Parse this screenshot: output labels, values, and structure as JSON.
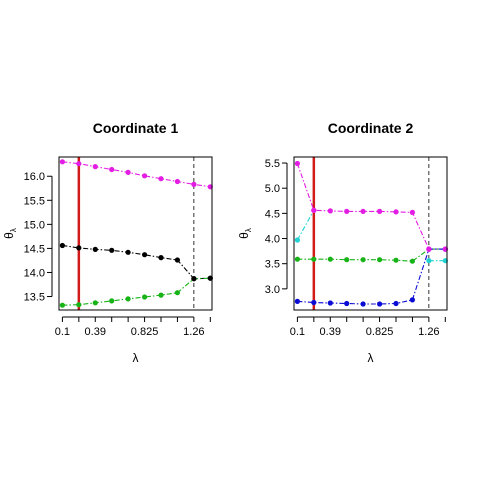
{
  "colors": {
    "magenta": "#e31de3",
    "black": "#000000",
    "green": "#17b317",
    "blue": "#0b0bd6",
    "cyan": "#20d3d3",
    "red": "#d11b1b",
    "axis": "#000000",
    "vline_dashed": "#000000"
  },
  "chart_data": [
    {
      "type": "line",
      "title": "Coordinate  1",
      "xlabel": "λ",
      "ylabel": "θλ",
      "ylabel_main": "θ",
      "ylabel_sub": "λ",
      "xlim": [
        0.07,
        1.42
      ],
      "ylim": [
        13.22,
        16.4
      ],
      "xticks": [
        0.1,
        0.39,
        0.825,
        1.26
      ],
      "xtick_labels": [
        "0.1",
        "0.39",
        "0.825",
        "1.26"
      ],
      "yticks": [
        13.5,
        14.0,
        14.5,
        15.0,
        15.5,
        16.0
      ],
      "ytick_labels": [
        "13.5",
        "14.0",
        "14.5",
        "15.0",
        "15.5",
        "16.0"
      ],
      "vline_solid": 0.245,
      "vline_dashed": 1.26,
      "x": [
        0.1,
        0.245,
        0.39,
        0.535,
        0.68,
        0.825,
        0.97,
        1.115,
        1.26,
        1.405
      ],
      "series": [
        {
          "color": "magenta",
          "values": [
            16.3,
            16.26,
            16.2,
            16.14,
            16.08,
            16.01,
            15.95,
            15.89,
            15.83,
            15.78
          ],
          "point_colors": [
            "magenta",
            "magenta",
            "magenta",
            "magenta",
            "magenta",
            "magenta",
            "magenta",
            "magenta",
            "magenta",
            "magenta"
          ]
        },
        {
          "color": "black",
          "values": [
            14.56,
            14.51,
            14.48,
            14.46,
            14.42,
            14.37,
            14.31,
            14.26,
            13.87,
            13.88
          ],
          "point_colors": [
            "black",
            "black",
            "black",
            "black",
            "black",
            "black",
            "black",
            "black",
            "black",
            "black"
          ]
        },
        {
          "color": "green",
          "values": [
            13.32,
            13.33,
            13.37,
            13.41,
            13.45,
            13.49,
            13.53,
            13.58,
            13.87,
            13.88
          ],
          "point_colors": [
            "green",
            "green",
            "green",
            "green",
            "green",
            "green",
            "green",
            "green",
            "black",
            "black"
          ]
        }
      ]
    },
    {
      "type": "line",
      "title": "Coordinate  2",
      "xlabel": "λ",
      "ylabel": "θλ",
      "ylabel_main": "θ",
      "ylabel_sub": "λ",
      "xlim": [
        0.07,
        1.42
      ],
      "ylim": [
        2.58,
        5.62
      ],
      "xticks": [
        0.1,
        0.39,
        0.825,
        1.26
      ],
      "xtick_labels": [
        "0.1",
        "0.39",
        "0.825",
        "1.26"
      ],
      "yticks": [
        3.0,
        3.5,
        4.0,
        4.5,
        5.0,
        5.5
      ],
      "ytick_labels": [
        "3.0",
        "3.5",
        "4.0",
        "4.5",
        "5.0",
        "5.5"
      ],
      "vline_solid": 0.245,
      "vline_dashed": 1.26,
      "x": [
        0.1,
        0.245,
        0.39,
        0.535,
        0.68,
        0.825,
        0.97,
        1.115,
        1.26,
        1.405
      ],
      "series": [
        {
          "color": "magenta",
          "values": [
            5.49,
            4.56,
            4.55,
            4.54,
            4.54,
            4.54,
            4.53,
            4.52,
            3.79,
            3.79
          ],
          "point_colors": [
            "magenta",
            "magenta",
            "magenta",
            "magenta",
            "magenta",
            "magenta",
            "magenta",
            "magenta",
            "magenta",
            "magenta"
          ]
        },
        {
          "color": "cyan",
          "values": [
            3.97,
            4.56
          ],
          "point_colors": [
            "cyan",
            "magenta"
          ],
          "x": [
            0.1,
            0.245
          ]
        },
        {
          "color": "cyan",
          "values": [
            3.56,
            3.56
          ],
          "point_colors": [
            "cyan",
            "cyan"
          ],
          "x": [
            1.26,
            1.405
          ]
        },
        {
          "color": "green",
          "values": [
            3.59,
            3.59,
            3.59,
            3.58,
            3.58,
            3.58,
            3.57,
            3.55,
            3.79,
            3.79
          ],
          "point_colors": [
            "green",
            "green",
            "green",
            "green",
            "green",
            "green",
            "green",
            "green",
            "magenta",
            "magenta"
          ]
        },
        {
          "color": "blue",
          "values": [
            2.75,
            2.73,
            2.72,
            2.71,
            2.7,
            2.7,
            2.71,
            2.78,
            3.79,
            3.79
          ],
          "point_colors": [
            "blue",
            "blue",
            "blue",
            "blue",
            "blue",
            "blue",
            "blue",
            "blue",
            "magenta",
            "magenta"
          ]
        }
      ]
    }
  ]
}
